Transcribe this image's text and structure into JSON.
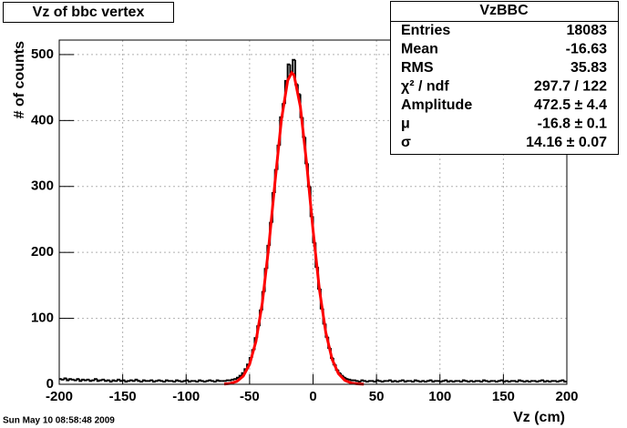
{
  "chart_data": {
    "type": "histogram",
    "title": "Vz of bbc  vertex",
    "xlabel": "Vz (cm)",
    "ylabel": "# of counts",
    "color": "#000000",
    "grid": true,
    "xlim": [
      -200,
      200
    ],
    "ylim": [
      0,
      522
    ],
    "xticks": [
      -200,
      -150,
      -100,
      -50,
      0,
      50,
      100,
      150,
      200
    ],
    "yticks": [
      0,
      100,
      200,
      300,
      400,
      500
    ],
    "bins": [
      -200,
      -198,
      -196,
      -194,
      -192,
      -190,
      -188,
      -186,
      -184,
      -182,
      -180,
      -178,
      -176,
      -174,
      -172,
      -170,
      -168,
      -166,
      -164,
      -162,
      -160,
      -158,
      -156,
      -154,
      -152,
      -150,
      -148,
      -146,
      -144,
      -142,
      -140,
      -138,
      -136,
      -134,
      -132,
      -130,
      -128,
      -126,
      -124,
      -122,
      -120,
      -118,
      -116,
      -114,
      -112,
      -110,
      -108,
      -106,
      -104,
      -102,
      -100,
      -98,
      -96,
      -94,
      -92,
      -90,
      -88,
      -86,
      -84,
      -82,
      -80,
      -78,
      -76,
      -74,
      -72,
      -70,
      -68,
      -66,
      -64,
      -62,
      -60,
      -58,
      -56,
      -54,
      -52,
      -50,
      -48,
      -46,
      -44,
      -42,
      -40,
      -38,
      -36,
      -34,
      -32,
      -30,
      -28,
      -26,
      -24,
      -22,
      -20,
      -18,
      -16,
      -14,
      -12,
      -10,
      -8,
      -6,
      -4,
      -2,
      0,
      2,
      4,
      6,
      8,
      10,
      12,
      14,
      16,
      18,
      20,
      22,
      24,
      26,
      28,
      30,
      32,
      34,
      36,
      38,
      40,
      42,
      44,
      46,
      48,
      50,
      52,
      54,
      56,
      58,
      60,
      62,
      64,
      66,
      68,
      70,
      72,
      74,
      76,
      78,
      80,
      82,
      84,
      86,
      88,
      90,
      92,
      94,
      96,
      98,
      100,
      102,
      104,
      106,
      108,
      110,
      112,
      114,
      116,
      118,
      120,
      122,
      124,
      126,
      128,
      130,
      132,
      134,
      136,
      138,
      140,
      142,
      144,
      146,
      148,
      150,
      152,
      154,
      156,
      158,
      160,
      162,
      164,
      166,
      168,
      170,
      172,
      174,
      176,
      178,
      180,
      182,
      184,
      186,
      188,
      190,
      192,
      194,
      196,
      198,
      200
    ],
    "counts": [
      8,
      7,
      9,
      6,
      8,
      7,
      6,
      8,
      5,
      7,
      6,
      7,
      5,
      6,
      8,
      5,
      6,
      7,
      5,
      6,
      4,
      6,
      5,
      7,
      5,
      6,
      4,
      5,
      6,
      5,
      7,
      5,
      4,
      6,
      5,
      5,
      6,
      4,
      5,
      6,
      5,
      4,
      6,
      5,
      5,
      4,
      6,
      5,
      4,
      5,
      6,
      4,
      5,
      5,
      4,
      6,
      5,
      4,
      5,
      6,
      5,
      4,
      6,
      5,
      5,
      5,
      6,
      6,
      7,
      8,
      10,
      13,
      17,
      23,
      30,
      40,
      52,
      70,
      88,
      112,
      140,
      175,
      210,
      245,
      290,
      325,
      362,
      405,
      425,
      460,
      485,
      470,
      492,
      455,
      440,
      405,
      375,
      335,
      300,
      255,
      215,
      178,
      145,
      115,
      92,
      72,
      55,
      40,
      30,
      22,
      17,
      13,
      10,
      8,
      7,
      6,
      6,
      5,
      4,
      6,
      5,
      4,
      5,
      5,
      4,
      6,
      5,
      4,
      5,
      5,
      6,
      4,
      5,
      4,
      5,
      6,
      4,
      5,
      5,
      4,
      6,
      5,
      4,
      5,
      4,
      5,
      6,
      4,
      5,
      5,
      4,
      5,
      6,
      4,
      5,
      4,
      5,
      5,
      4,
      6,
      5,
      4,
      5,
      4,
      5,
      5,
      4,
      6,
      5,
      4,
      5,
      5,
      4,
      5,
      6,
      4,
      5,
      4,
      5,
      5,
      4,
      6,
      5,
      4,
      5,
      4,
      5,
      5,
      4,
      5,
      6,
      4,
      5,
      4,
      5,
      5,
      4,
      5,
      6,
      4
    ],
    "fit": {
      "color": "#ff0000",
      "x": [
        -70,
        -65,
        -60,
        -55,
        -50,
        -45,
        -40,
        -35,
        -30,
        -25,
        -20,
        -16.8,
        -15,
        -10,
        -5,
        0,
        5,
        10,
        15,
        20,
        25,
        30,
        35,
        40
      ],
      "y": [
        0.4,
        1.4,
        4.5,
        12.4,
        30.3,
        65,
        123,
        207,
        306,
        400,
        460.6,
        472.5,
        469,
        421,
        334,
        233.7,
        144,
        78.9,
        38,
        16.1,
        6,
        2,
        0.7,
        0.2
      ]
    }
  },
  "stats": {
    "title": "VzBBC",
    "rows": [
      [
        "Entries",
        "18083"
      ],
      [
        "Mean",
        "-16.63"
      ],
      [
        "RMS",
        "35.83"
      ],
      [
        "χ² / ndf",
        "297.7 / 122"
      ],
      [
        "Amplitude",
        "472.5 ± 4.4"
      ],
      [
        "μ",
        "-16.8 ± 0.1"
      ],
      [
        "σ",
        "14.16 ± 0.07"
      ]
    ]
  },
  "timestamp": "Sun May 10 08:58:48 2009"
}
